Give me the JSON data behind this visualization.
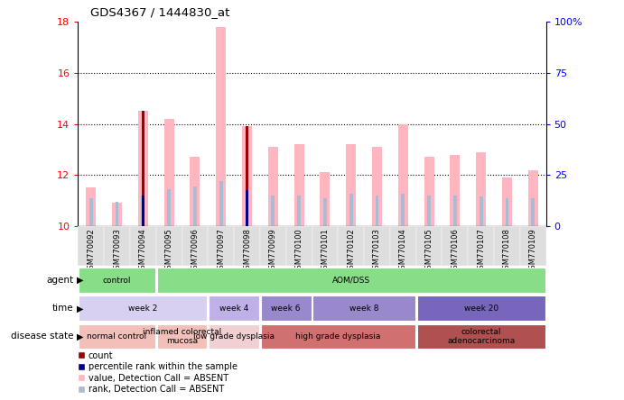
{
  "title": "GDS4367 / 1444830_at",
  "samples": [
    "GSM770092",
    "GSM770093",
    "GSM770094",
    "GSM770095",
    "GSM770096",
    "GSM770097",
    "GSM770098",
    "GSM770099",
    "GSM770100",
    "GSM770101",
    "GSM770102",
    "GSM770103",
    "GSM770104",
    "GSM770105",
    "GSM770106",
    "GSM770107",
    "GSM770108",
    "GSM770109"
  ],
  "value_bars": [
    11.5,
    10.9,
    14.5,
    14.2,
    12.7,
    17.8,
    13.9,
    13.1,
    13.2,
    12.1,
    13.2,
    13.1,
    14.0,
    12.7,
    12.8,
    12.9,
    11.9,
    12.2
  ],
  "rank_bars": [
    11.1,
    10.95,
    11.2,
    11.45,
    11.55,
    11.75,
    11.4,
    11.2,
    11.2,
    11.1,
    11.25,
    11.2,
    11.25,
    11.2,
    11.2,
    11.15,
    11.1,
    11.1
  ],
  "count_bars": [
    null,
    null,
    14.5,
    null,
    null,
    null,
    13.9,
    null,
    null,
    null,
    null,
    null,
    null,
    null,
    null,
    null,
    null,
    null
  ],
  "percentile_bars": [
    null,
    null,
    11.2,
    null,
    null,
    null,
    11.4,
    null,
    null,
    null,
    null,
    null,
    null,
    null,
    null,
    null,
    null,
    null
  ],
  "ymin": 10,
  "ymax": 18,
  "yticks_left": [
    10,
    12,
    14,
    16,
    18
  ],
  "yticks_right": [
    0,
    25,
    50,
    75,
    100
  ],
  "value_bar_color": "#FFB6C1",
  "rank_bar_color": "#AABBD4",
  "count_bar_color": "#9B0000",
  "percentile_bar_color": "#00008B",
  "agent_segs": [
    {
      "text": "control",
      "start": 0,
      "end": 3,
      "color": "#88DD88"
    },
    {
      "text": "AOM/DSS",
      "start": 3,
      "end": 18,
      "color": "#88DD88"
    }
  ],
  "time_segs": [
    {
      "text": "week 2",
      "start": 0,
      "end": 5,
      "color": "#D8D0F0"
    },
    {
      "text": "week 4",
      "start": 5,
      "end": 7,
      "color": "#C0B0E8"
    },
    {
      "text": "week 6",
      "start": 7,
      "end": 9,
      "color": "#9988CC"
    },
    {
      "text": "week 8",
      "start": 9,
      "end": 13,
      "color": "#9988CC"
    },
    {
      "text": "week 20",
      "start": 13,
      "end": 18,
      "color": "#7766BB"
    }
  ],
  "disease_segs": [
    {
      "text": "normal control",
      "start": 0,
      "end": 3,
      "color": "#F2C0B8"
    },
    {
      "text": "inflamed colorectal\nmucosa",
      "start": 3,
      "end": 5,
      "color": "#F2C0B8"
    },
    {
      "text": "low grade dysplasia",
      "start": 5,
      "end": 7,
      "color": "#F0D0D0"
    },
    {
      "text": "high grade dysplasia",
      "start": 7,
      "end": 13,
      "color": "#D07070"
    },
    {
      "text": "colorectal\nadenocarcinoma",
      "start": 13,
      "end": 18,
      "color": "#B05050"
    }
  ],
  "legend_items": [
    {
      "color": "#9B0000",
      "label": "count"
    },
    {
      "color": "#00008B",
      "label": "percentile rank within the sample"
    },
    {
      "color": "#FFB6C1",
      "label": "value, Detection Call = ABSENT"
    },
    {
      "color": "#AABBD4",
      "label": "rank, Detection Call = ABSENT"
    }
  ]
}
